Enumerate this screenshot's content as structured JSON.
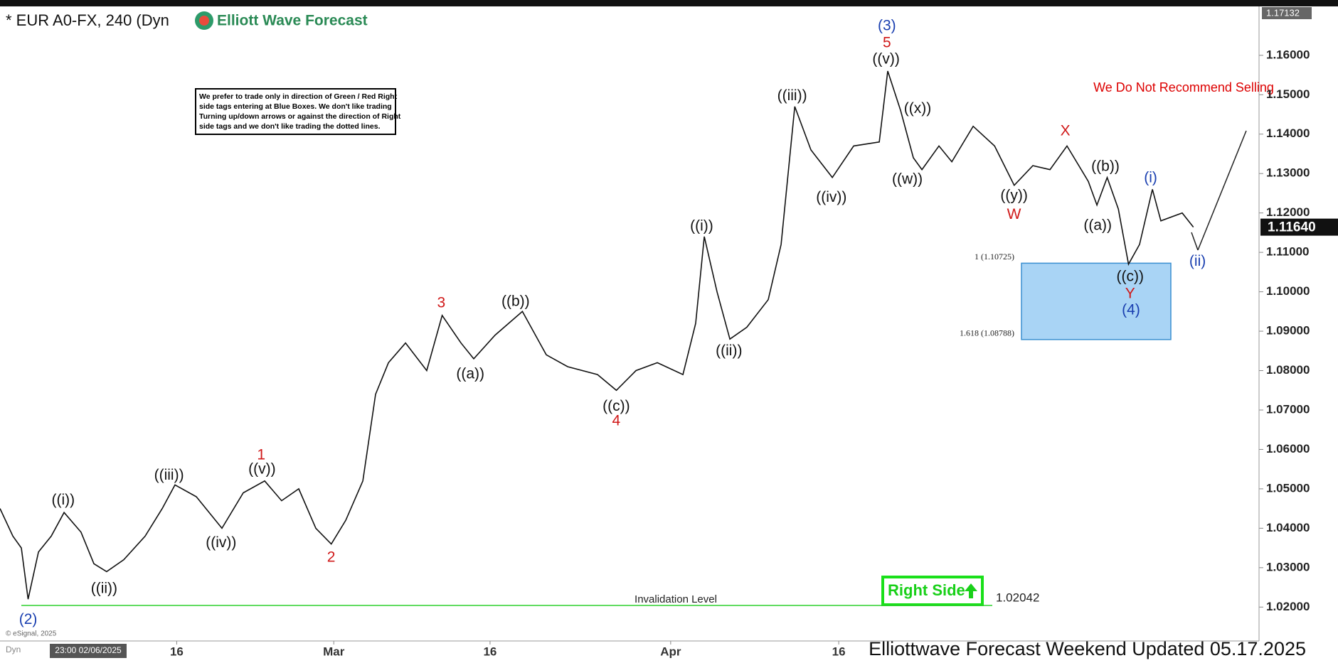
{
  "chart_data": {
    "type": "line",
    "title": "* EUR A0-FX, 240 (Dyn",
    "brand": "Elliott Wave Forecast",
    "note": [
      "We prefer to trade only in direction of Green / Red Right",
      "side tags entering at Blue Boxes. We don't like trading",
      "Turning up/down arrows or against the direction of Right",
      "side tags and we don't like trading the dotted lines."
    ],
    "warning": "We Do Not Recommend Selling",
    "footer": "Elliottwave Forecast Weekend Updated 05.17.2025",
    "copyright": "© eSignal, 2025",
    "start_time": "23:00 02/06/2025",
    "dyn": "Dyn",
    "right_side": "Right Side",
    "invalidation_text": "Invalidation Level",
    "invalidation": 1.02042,
    "fib_box": {
      "top": {
        "value": 1.10725,
        "label": "1 (1.10725)"
      },
      "bottom": {
        "value": 1.08788,
        "label": "1.618 (1.08788)"
      }
    },
    "top_price": 1.17132,
    "last_price": {
      "value": 1.1164,
      "label": "1.11640"
    },
    "color": "#111111",
    "x": [
      0,
      0.82,
      1.36,
      1.79,
      2.45,
      3.26,
      4.08,
      5.16,
      5.98,
      6.79,
      7.88,
      9.24,
      10.33,
      11.14,
      12.5,
      14.13,
      15.49,
      16.85,
      17.93,
      19.02,
      20.11,
      21.09,
      22.01,
      23.1,
      23.91,
      24.73,
      25.82,
      27.17,
      28.15,
      29.35,
      30.16,
      31.52,
      33.26,
      34.78,
      36.14,
      38.04,
      39.24,
      40.49,
      41.85,
      43.48,
      44.29,
      44.84,
      45.65,
      46.47,
      47.55,
      48.91,
      49.73,
      50.6,
      51.63,
      52.99,
      54.35,
      55.98,
      56.52,
      57.34,
      58.15,
      58.7,
      59.78,
      60.6,
      61.96,
      63.32,
      64.57,
      65.76,
      66.85,
      67.93,
      69.29,
      69.84,
      70.49,
      71.2,
      71.85,
      72.55,
      73.37,
      73.91,
      75.27,
      75.98
    ],
    "values": [
      1.045,
      1.038,
      1.035,
      1.022,
      1.034,
      1.038,
      1.044,
      1.039,
      1.031,
      1.029,
      1.032,
      1.038,
      1.045,
      1.051,
      1.048,
      1.04,
      1.049,
      1.052,
      1.047,
      1.05,
      1.04,
      1.036,
      1.042,
      1.052,
      1.074,
      1.082,
      1.087,
      1.08,
      1.094,
      1.087,
      1.083,
      1.089,
      1.095,
      1.084,
      1.081,
      1.079,
      1.075,
      1.08,
      1.082,
      1.079,
      1.092,
      1.114,
      1.1,
      1.088,
      1.091,
      1.098,
      1.112,
      1.147,
      1.136,
      1.129,
      1.137,
      1.138,
      1.156,
      1.146,
      1.134,
      1.131,
      1.137,
      1.133,
      1.142,
      1.137,
      1.127,
      1.132,
      1.131,
      1.137,
      1.128,
      1.122,
      1.129,
      1.121,
      1.107,
      1.112,
      1.126,
      1.118,
      1.12,
      1.1164
    ],
    "xlim": [
      0,
      80.16
    ],
    "ylim": [
      1.0114,
      1.1723
    ],
    "xticks": [
      {
        "value": 11.25,
        "label": "16"
      },
      {
        "value": 21.25,
        "label": "Mar"
      },
      {
        "value": 31.2,
        "label": "16"
      },
      {
        "value": 42.7,
        "label": "Apr"
      },
      {
        "value": 53.4,
        "label": "16"
      }
    ],
    "yticks": [
      {
        "value": 1.02,
        "label": "1.02000"
      },
      {
        "value": 1.03,
        "label": "1.03000"
      },
      {
        "value": 1.04,
        "label": "1.04000"
      },
      {
        "value": 1.05,
        "label": "1.05000"
      },
      {
        "value": 1.06,
        "label": "1.06000"
      },
      {
        "value": 1.07,
        "label": "1.07000"
      },
      {
        "value": 1.08,
        "label": "1.08000"
      },
      {
        "value": 1.09,
        "label": "1.09000"
      },
      {
        "value": 1.1,
        "label": "1.10000"
      },
      {
        "value": 1.11,
        "label": "1.11000"
      },
      {
        "value": 1.12,
        "label": "1.12000"
      },
      {
        "value": 1.13,
        "label": "1.13000"
      },
      {
        "value": 1.14,
        "label": "1.14000"
      },
      {
        "value": 1.15,
        "label": "1.15000"
      },
      {
        "value": 1.16,
        "label": "1.16000"
      }
    ],
    "annotations": [
      "(2)",
      "((i))",
      "((ii))",
      "((iii))",
      "((iv))",
      "((v))",
      "1",
      "2",
      "3",
      "((a))",
      "((b))",
      "((c))",
      "4",
      "((i))",
      "((ii))",
      "((iii))",
      "((iv))",
      "((v))",
      "5",
      "(3)",
      "((x))",
      "((w))",
      "((y))",
      "W",
      "X",
      "((b))",
      "((a))",
      "((c))",
      "Y",
      "(4)",
      "(i)",
      "(ii)"
    ]
  }
}
